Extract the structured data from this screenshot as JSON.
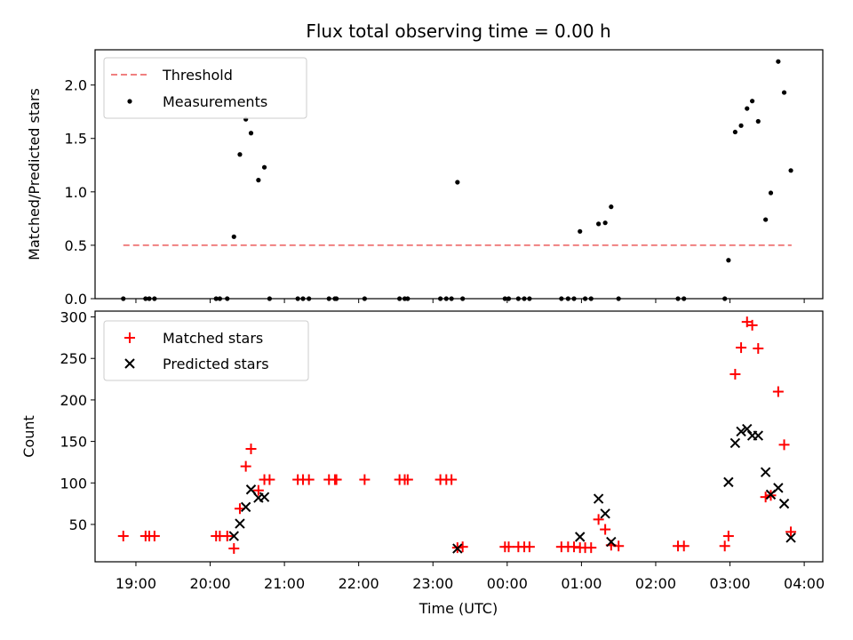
{
  "chart_data": [
    {
      "type": "scatter",
      "title": "Flux total observing time = 0.00 h",
      "xlabel": "",
      "ylabel": "Matched/Predicted stars",
      "ylim": [
        0,
        2.33
      ],
      "xlim": [
        18.45,
        28.25
      ],
      "yticks": [
        0.0,
        0.5,
        1.0,
        1.5,
        2.0
      ],
      "ytick_labels": [
        "0.0",
        "0.5",
        "1.0",
        "1.5",
        "2.0"
      ],
      "legend_position": "upper-left",
      "threshold": {
        "name": "Threshold",
        "value": 0.5,
        "x_range": [
          18.83,
          27.83
        ],
        "color": "#f08080",
        "style": "dashed"
      },
      "series": [
        {
          "name": "Measurements",
          "color": "#000000",
          "marker": "dot",
          "points": [
            [
              18.83,
              0
            ],
            [
              19.13,
              0
            ],
            [
              19.18,
              0
            ],
            [
              19.25,
              0
            ],
            [
              20.08,
              0
            ],
            [
              20.13,
              0
            ],
            [
              20.23,
              0
            ],
            [
              20.32,
              0.58
            ],
            [
              20.4,
              1.35
            ],
            [
              20.48,
              1.68
            ],
            [
              20.55,
              1.55
            ],
            [
              20.65,
              1.11
            ],
            [
              20.73,
              1.23
            ],
            [
              20.8,
              0
            ],
            [
              21.18,
              0
            ],
            [
              21.25,
              0
            ],
            [
              21.33,
              0
            ],
            [
              21.6,
              0
            ],
            [
              21.68,
              0
            ],
            [
              21.7,
              0
            ],
            [
              22.08,
              0
            ],
            [
              22.55,
              0
            ],
            [
              22.62,
              0
            ],
            [
              22.66,
              0
            ],
            [
              23.1,
              0
            ],
            [
              23.18,
              0
            ],
            [
              23.25,
              0
            ],
            [
              23.33,
              1.09
            ],
            [
              23.4,
              0
            ],
            [
              23.97,
              0
            ],
            [
              24.02,
              0
            ],
            [
              24.15,
              0
            ],
            [
              24.23,
              0
            ],
            [
              24.3,
              0
            ],
            [
              24.73,
              0
            ],
            [
              24.82,
              0
            ],
            [
              24.9,
              0
            ],
            [
              24.98,
              0.63
            ],
            [
              25.05,
              0
            ],
            [
              25.13,
              0
            ],
            [
              25.23,
              0.7
            ],
            [
              25.32,
              0.71
            ],
            [
              25.4,
              0.86
            ],
            [
              25.5,
              0
            ],
            [
              26.3,
              0
            ],
            [
              26.38,
              0
            ],
            [
              26.93,
              0
            ],
            [
              26.98,
              0.36
            ],
            [
              27.07,
              1.56
            ],
            [
              27.15,
              1.62
            ],
            [
              27.23,
              1.78
            ],
            [
              27.3,
              1.85
            ],
            [
              27.38,
              1.66
            ],
            [
              27.48,
              0.74
            ],
            [
              27.55,
              0.99
            ],
            [
              27.65,
              2.22
            ],
            [
              27.73,
              1.93
            ],
            [
              27.82,
              1.2
            ]
          ]
        }
      ]
    },
    {
      "type": "scatter",
      "title": "",
      "xlabel": "Time (UTC)",
      "ylabel": "Count",
      "ylim": [
        5,
        307
      ],
      "xlim": [
        18.45,
        28.25
      ],
      "yticks": [
        50,
        100,
        150,
        200,
        250,
        300
      ],
      "ytick_labels": [
        "50",
        "100",
        "150",
        "200",
        "250",
        "300"
      ],
      "xticks": [
        19,
        20,
        21,
        22,
        23,
        24,
        25,
        26,
        27,
        28
      ],
      "xtick_labels": [
        "19:00",
        "20:00",
        "21:00",
        "22:00",
        "23:00",
        "00:00",
        "01:00",
        "02:00",
        "03:00",
        "04:00"
      ],
      "legend_position": "upper-left",
      "series": [
        {
          "name": "Matched stars",
          "color": "#ff0000",
          "marker": "plus",
          "points": [
            [
              18.83,
              36
            ],
            [
              19.13,
              36
            ],
            [
              19.18,
              36
            ],
            [
              19.25,
              36
            ],
            [
              20.08,
              36
            ],
            [
              20.13,
              36
            ],
            [
              20.23,
              36
            ],
            [
              20.32,
              21
            ],
            [
              20.4,
              69
            ],
            [
              20.48,
              120
            ],
            [
              20.55,
              141
            ],
            [
              20.65,
              91
            ],
            [
              20.73,
              104
            ],
            [
              20.8,
              104
            ],
            [
              21.18,
              104
            ],
            [
              21.25,
              104
            ],
            [
              21.33,
              104
            ],
            [
              21.6,
              104
            ],
            [
              21.68,
              104
            ],
            [
              21.7,
              104
            ],
            [
              22.08,
              104
            ],
            [
              22.55,
              104
            ],
            [
              22.62,
              104
            ],
            [
              22.66,
              104
            ],
            [
              23.1,
              104
            ],
            [
              23.18,
              104
            ],
            [
              23.25,
              104
            ],
            [
              23.33,
              22
            ],
            [
              23.4,
              23
            ],
            [
              23.97,
              23
            ],
            [
              24.02,
              23
            ],
            [
              24.15,
              23
            ],
            [
              24.23,
              23
            ],
            [
              24.3,
              23
            ],
            [
              24.73,
              23
            ],
            [
              24.82,
              23
            ],
            [
              24.9,
              23
            ],
            [
              24.98,
              22
            ],
            [
              25.05,
              22
            ],
            [
              25.13,
              22
            ],
            [
              25.23,
              56
            ],
            [
              25.32,
              44
            ],
            [
              25.4,
              25
            ],
            [
              25.5,
              24
            ],
            [
              26.3,
              24
            ],
            [
              26.38,
              24
            ],
            [
              26.93,
              24
            ],
            [
              26.98,
              36
            ],
            [
              27.07,
              231
            ],
            [
              27.15,
              263
            ],
            [
              27.23,
              294
            ],
            [
              27.3,
              290
            ],
            [
              27.38,
              262
            ],
            [
              27.48,
              83
            ],
            [
              27.55,
              85
            ],
            [
              27.65,
              210
            ],
            [
              27.73,
              146
            ],
            [
              27.82,
              41
            ]
          ]
        },
        {
          "name": "Predicted stars",
          "color": "#000000",
          "marker": "x",
          "points": [
            [
              20.32,
              36
            ],
            [
              20.4,
              51
            ],
            [
              20.48,
              71
            ],
            [
              20.55,
              92
            ],
            [
              20.65,
              82
            ],
            [
              20.73,
              83
            ],
            [
              23.33,
              21
            ],
            [
              24.98,
              35
            ],
            [
              25.23,
              81
            ],
            [
              25.32,
              63
            ],
            [
              25.4,
              29
            ],
            [
              26.98,
              101
            ],
            [
              27.07,
              148
            ],
            [
              27.15,
              162
            ],
            [
              27.23,
              165
            ],
            [
              27.3,
              157
            ],
            [
              27.38,
              157
            ],
            [
              27.48,
              113
            ],
            [
              27.55,
              86
            ],
            [
              27.65,
              94
            ],
            [
              27.73,
              75
            ],
            [
              27.82,
              34
            ]
          ]
        }
      ]
    }
  ]
}
